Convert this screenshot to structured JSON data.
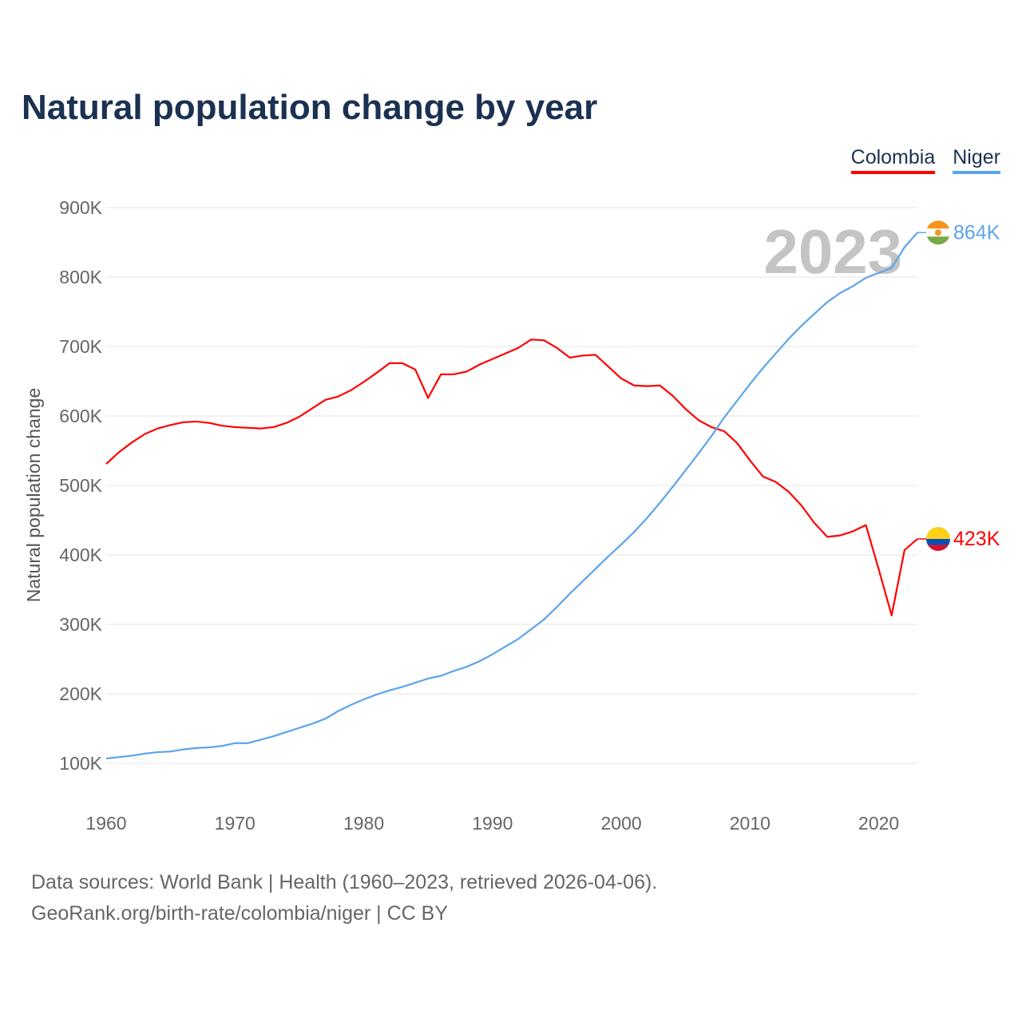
{
  "chart_data": {
    "type": "line",
    "title": "Natural population change by year",
    "xlabel": "",
    "ylabel": "Natural population change",
    "xlim": [
      1960,
      2023
    ],
    "ylim": [
      100000,
      900000
    ],
    "x_ticks": [
      1960,
      1970,
      1980,
      1990,
      2000,
      2010,
      2020
    ],
    "y_ticks": [
      100000,
      200000,
      300000,
      400000,
      500000,
      600000,
      700000,
      800000,
      900000
    ],
    "y_tick_labels": [
      "100K",
      "200K",
      "300K",
      "400K",
      "500K",
      "600K",
      "700K",
      "800K",
      "900K"
    ],
    "grid": true,
    "legend_placement": "top-right",
    "current_year_label": "2023",
    "x": [
      1960,
      1961,
      1962,
      1963,
      1964,
      1965,
      1966,
      1967,
      1968,
      1969,
      1970,
      1971,
      1972,
      1973,
      1974,
      1975,
      1976,
      1977,
      1978,
      1979,
      1980,
      1981,
      1982,
      1983,
      1984,
      1985,
      1986,
      1987,
      1988,
      1989,
      1990,
      1991,
      1992,
      1993,
      1994,
      1995,
      1996,
      1997,
      1998,
      1999,
      2000,
      2001,
      2002,
      2003,
      2004,
      2005,
      2006,
      2007,
      2008,
      2009,
      2010,
      2011,
      2012,
      2013,
      2014,
      2015,
      2016,
      2017,
      2018,
      2019,
      2020,
      2021,
      2022,
      2023
    ],
    "series": [
      {
        "name": "Colombia",
        "color": "#ff0000",
        "end_label": "423K",
        "values": [
          531,
          548,
          562,
          574,
          582,
          587,
          591,
          592,
          590,
          586,
          584,
          583,
          582,
          584,
          590,
          599,
          611,
          623,
          628,
          637,
          649,
          662,
          676,
          676,
          667,
          626,
          660,
          660,
          664,
          674,
          682,
          690,
          698,
          710,
          709,
          698,
          684,
          687,
          688,
          671,
          654,
          644,
          643,
          644,
          629,
          610,
          594,
          584,
          578,
          561,
          536,
          513,
          505,
          491,
          471,
          446,
          426,
          428,
          434,
          443,
          379,
          313,
          407,
          423
        ]
      },
      {
        "name": "Niger",
        "color": "#5ba4ea",
        "end_label": "864K",
        "values": [
          107,
          109,
          111,
          114,
          116,
          117,
          120,
          122,
          123,
          125,
          129,
          129,
          134,
          139,
          145,
          151,
          157,
          164,
          175,
          184,
          192,
          199,
          205,
          210,
          216,
          222,
          226,
          233,
          239,
          247,
          257,
          268,
          279,
          293,
          307,
          325,
          344,
          362,
          380,
          398,
          415,
          433,
          453,
          475,
          498,
          522,
          546,
          571,
          598,
          622,
          646,
          669,
          690,
          711,
          730,
          747,
          764,
          777,
          787,
          799,
          806,
          813,
          843,
          864
        ]
      }
    ],
    "value_unit": "thousands"
  },
  "footer": {
    "line1": "Data sources: World Bank | Health (1960–2023, retrieved 2026-04-06).",
    "line2": "GeoRank.org/birth-rate/colombia/niger | CC BY"
  }
}
